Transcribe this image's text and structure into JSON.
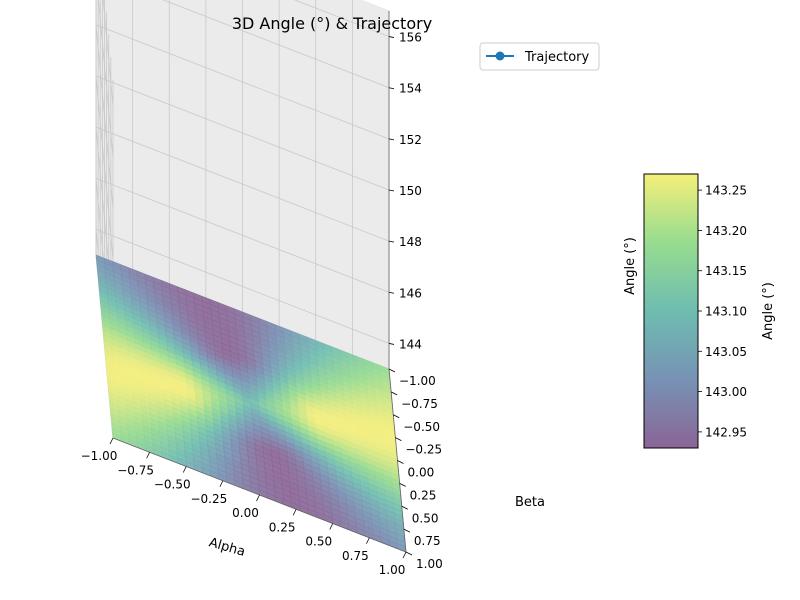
{
  "chart_data": {
    "type": "surface3d",
    "title": "3D Angle (°) & Trajectory",
    "xlabel": "Alpha",
    "ylabel": "Beta",
    "zlabel": "Angle (°)",
    "xlim": [
      -1.0,
      1.0
    ],
    "ylim": [
      -1.0,
      1.0
    ],
    "zlim": [
      143.0,
      157.0
    ],
    "x_ticks": [
      "−1.00",
      "−0.75",
      "−0.50",
      "−0.25",
      "0.00",
      "0.25",
      "0.50",
      "0.75",
      "1.00"
    ],
    "y_ticks": [
      "−1.00",
      "−0.75",
      "−0.50",
      "−0.25",
      "0.00",
      "0.25",
      "0.50",
      "0.75",
      "1.00"
    ],
    "z_ticks": [
      "144",
      "146",
      "148",
      "150",
      "152",
      "154",
      "156"
    ],
    "z_tick_values": [
      144,
      146,
      148,
      150,
      152,
      154,
      156
    ],
    "surface": {
      "colormap": "viridis",
      "alpha": 0.6,
      "zmin": 142.93,
      "zmax": 143.27,
      "description_note": ""
    },
    "legend": {
      "position": "top-right",
      "entries": [
        {
          "label": "Trajectory",
          "color": "#1f77b4",
          "marker": "circle"
        }
      ]
    },
    "colorbar": {
      "label": "Angle (°)",
      "min": 142.93,
      "max": 143.27,
      "ticks": [
        "142.95",
        "143.00",
        "143.05",
        "143.10",
        "143.15",
        "143.20",
        "143.25"
      ],
      "tick_values": [
        142.95,
        143.0,
        143.05,
        143.1,
        143.15,
        143.2,
        143.25
      ]
    },
    "grid": true
  }
}
